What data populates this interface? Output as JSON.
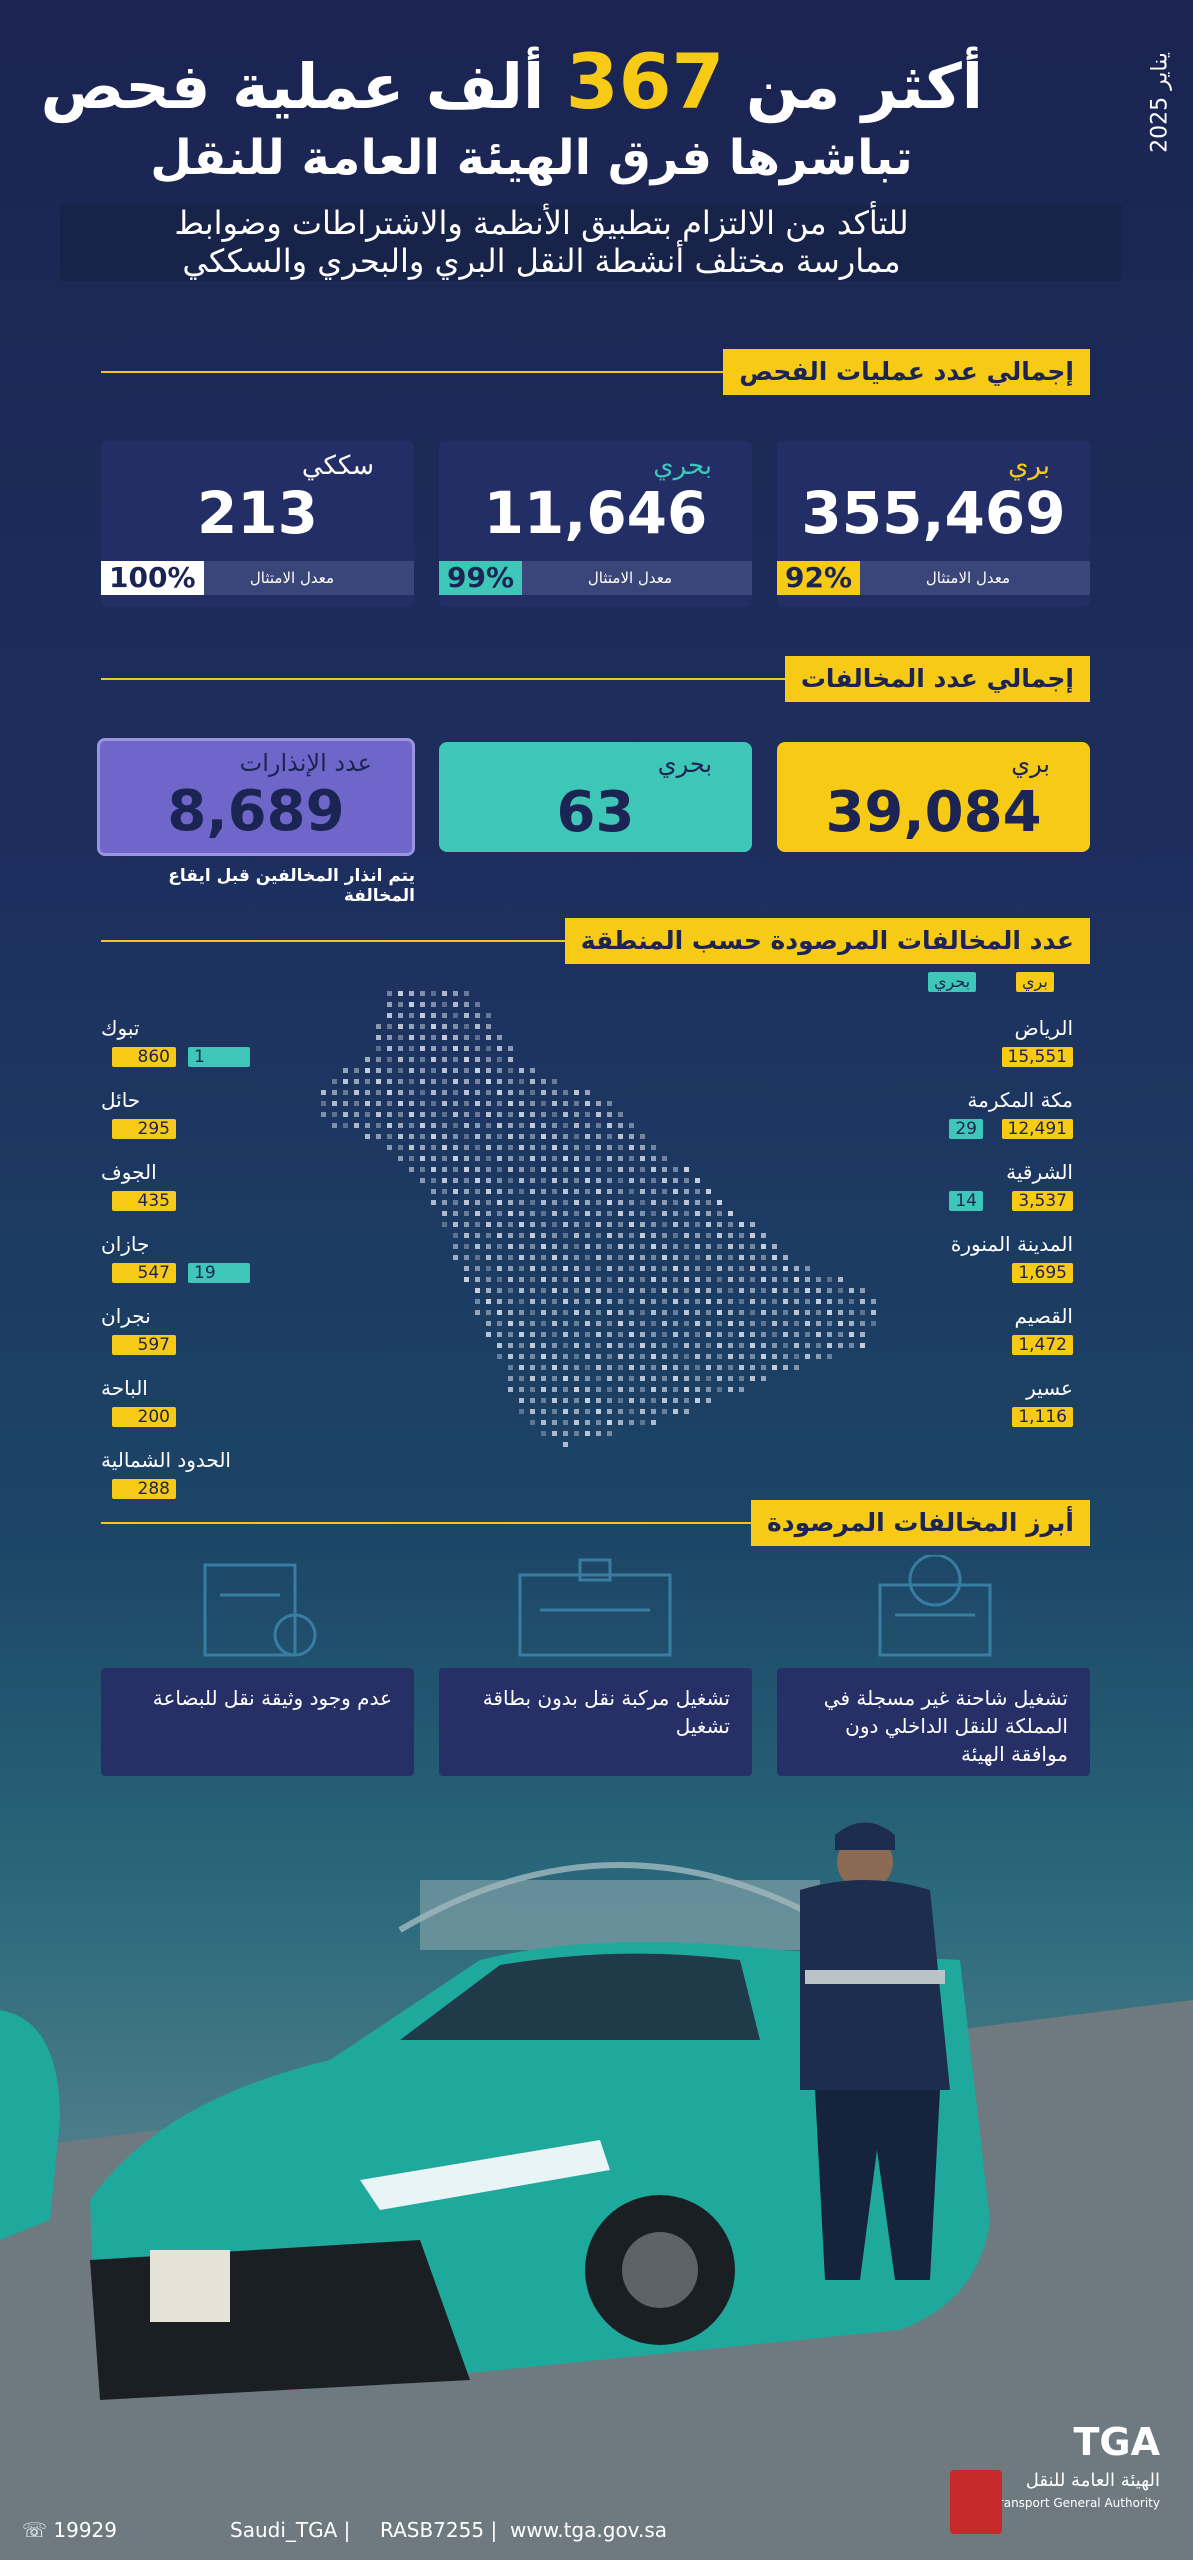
{
  "header": {
    "date": "يناير 2025",
    "title_start": "أكثر من",
    "title_number": "367",
    "title_end": "ألف عملية فحص",
    "title_line2": "تباشرها فرق الهيئة العامة للنقل",
    "subtitle": [
      "للتأكد من الالتزام بتطبيق الأنظمة والاشتراطات وضوابط",
      "ممارسة مختلف أنشطة النقل البري والبحري والسككي"
    ]
  },
  "inspections": {
    "title": "إجمالي عدد عمليات الفحص",
    "cards": [
      {
        "label": "بري",
        "value": "355,469",
        "rate_label": "معدل الامتثال",
        "rate": "92%"
      },
      {
        "label": "بحري",
        "value": "11,646",
        "rate_label": "معدل الامتثال",
        "rate": "99%"
      },
      {
        "label": "سككي",
        "value": "213",
        "rate_label": "معدل الامتثال",
        "rate": "100%"
      }
    ]
  },
  "violations": {
    "title": "إجمالي عدد المخالفات",
    "cards": [
      {
        "label": "بري",
        "value": "39,084"
      },
      {
        "label": "بحري",
        "value": "63"
      }
    ],
    "warnings": {
      "label": "عدد الإنذارات",
      "value": "8,689",
      "note": "يتم انذار المخالفين قبل ايقاع المخالفة"
    }
  },
  "regions": {
    "title": "عدد المخالفات المرصودة حسب المنطقة",
    "legend": [
      "بري",
      "بحري"
    ],
    "right": [
      {
        "name": "الرياض",
        "land": "15,551"
      },
      {
        "name": "مكة المكرمة",
        "land": "12,491",
        "sea": "29"
      },
      {
        "name": "الشرقية",
        "land": "3,537",
        "sea": "14"
      },
      {
        "name": "المدينة المنورة",
        "land": "1,695"
      },
      {
        "name": "القصيم",
        "land": "1,472"
      },
      {
        "name": "عسير",
        "land": "1,116"
      }
    ],
    "left": [
      {
        "name": "تبوك",
        "land": "860",
        "sea": "1"
      },
      {
        "name": "حائل",
        "land": "295"
      },
      {
        "name": "الجوف",
        "land": "435"
      },
      {
        "name": "جازان",
        "land": "547",
        "sea": "19"
      },
      {
        "name": "نجران",
        "land": "597"
      },
      {
        "name": "الباحة",
        "land": "200"
      },
      {
        "name": "الحدود الشمالية",
        "land": "288"
      }
    ]
  },
  "top_violations": {
    "title": "أبرز المخالفات المرصودة",
    "items": [
      "تشغيل شاحنة غير مسجلة في المملكة للنقل الداخلي دون موافقة الهيئة",
      "تشغيل مركبة نقل بدون بطاقة تشغيل",
      "عدم وجود وثيقة نقل للبضاعة"
    ]
  },
  "footer": {
    "logo": "TGA",
    "org_ar": "الهيئة العامة للنقل",
    "org_en": "Transport General Authority",
    "phone": "☏ 19929",
    "social": "Saudi_TGA |",
    "license": "RASB7255 |",
    "website": "www.tga.gov.sa"
  }
}
